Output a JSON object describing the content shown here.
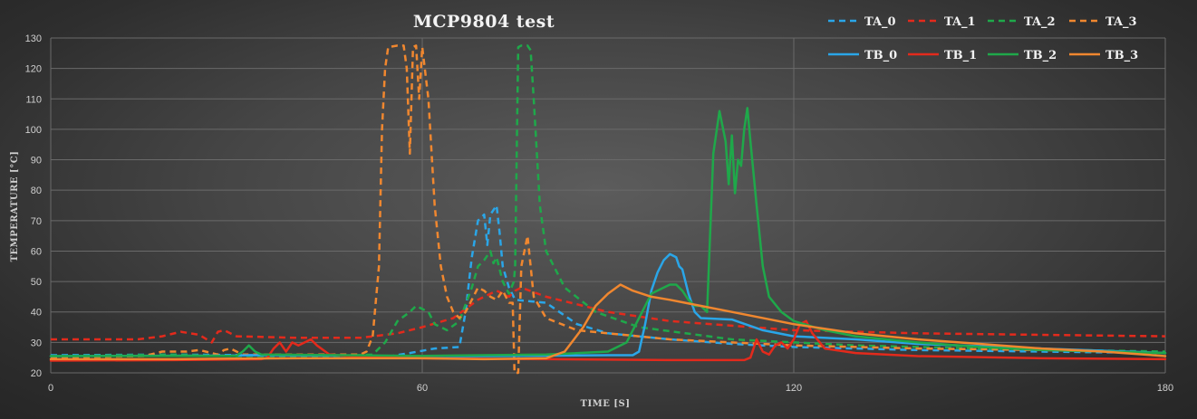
{
  "chart_data": {
    "type": "line",
    "title": "MCP9804  test",
    "xlabel": "TIME [S]",
    "ylabel": "TEMPERATURE [°C]",
    "xlim": [
      0,
      180
    ],
    "ylim": [
      20,
      130
    ],
    "x_ticks": [
      0,
      60,
      120,
      180
    ],
    "y_ticks": [
      20,
      30,
      40,
      50,
      60,
      70,
      80,
      90,
      100,
      110,
      120,
      130
    ],
    "grid": true,
    "legend_position": "top-right",
    "series": [
      {
        "name": "TA_0",
        "color": "#2aa6e8",
        "style": "dashed",
        "points": [
          [
            0,
            25.8
          ],
          [
            20,
            26
          ],
          [
            40,
            25.7
          ],
          [
            55,
            25.5
          ],
          [
            58,
            26.5
          ],
          [
            62,
            28
          ],
          [
            66,
            28.5
          ],
          [
            67,
            40
          ],
          [
            68,
            58
          ],
          [
            69,
            70
          ],
          [
            70,
            72
          ],
          [
            70.5,
            62
          ],
          [
            71,
            72
          ],
          [
            72,
            75
          ],
          [
            72.5,
            66
          ],
          [
            73,
            55
          ],
          [
            74,
            48
          ],
          [
            75,
            44
          ],
          [
            80,
            43
          ],
          [
            85,
            36
          ],
          [
            90,
            33
          ],
          [
            100,
            31
          ],
          [
            110,
            29.5
          ],
          [
            120,
            28.5
          ],
          [
            140,
            27.5
          ],
          [
            160,
            27
          ],
          [
            180,
            26.5
          ]
        ]
      },
      {
        "name": "TA_1",
        "color": "#e32a1c",
        "style": "dashed",
        "points": [
          [
            0,
            31
          ],
          [
            14,
            31
          ],
          [
            18,
            32
          ],
          [
            21,
            33.5
          ],
          [
            24,
            32.5
          ],
          [
            26,
            30
          ],
          [
            27,
            33.5
          ],
          [
            28,
            34
          ],
          [
            30,
            32
          ],
          [
            40,
            31.5
          ],
          [
            50,
            31.5
          ],
          [
            56,
            33
          ],
          [
            60,
            35
          ],
          [
            65,
            38
          ],
          [
            69,
            44
          ],
          [
            72,
            47
          ],
          [
            74,
            45
          ],
          [
            75,
            47
          ],
          [
            76,
            48
          ],
          [
            80,
            45
          ],
          [
            90,
            40
          ],
          [
            100,
            37
          ],
          [
            120,
            34
          ],
          [
            140,
            33
          ],
          [
            160,
            32.5
          ],
          [
            180,
            32
          ]
        ]
      },
      {
        "name": "TA_2",
        "color": "#1fa84a",
        "style": "dashed",
        "points": [
          [
            0,
            25.5
          ],
          [
            20,
            26
          ],
          [
            30,
            25.5
          ],
          [
            45,
            25.5
          ],
          [
            52,
            26
          ],
          [
            54,
            30
          ],
          [
            56,
            37
          ],
          [
            58,
            40
          ],
          [
            59,
            42
          ],
          [
            60,
            41
          ],
          [
            61,
            40
          ],
          [
            62,
            36
          ],
          [
            63,
            35
          ],
          [
            64,
            34
          ],
          [
            66,
            37
          ],
          [
            68,
            48
          ],
          [
            69,
            55
          ],
          [
            70,
            57
          ],
          [
            71,
            60
          ],
          [
            71.5,
            56
          ],
          [
            72,
            58
          ],
          [
            73,
            50
          ],
          [
            74,
            46
          ],
          [
            74.8,
            50
          ],
          [
            75,
            55
          ],
          [
            75.5,
            127
          ],
          [
            76,
            127.5
          ],
          [
            77,
            127.5
          ],
          [
            77.5,
            126
          ],
          [
            78,
            110
          ],
          [
            79,
            75
          ],
          [
            80,
            60
          ],
          [
            83,
            48
          ],
          [
            88,
            40
          ],
          [
            95,
            35
          ],
          [
            110,
            31
          ],
          [
            130,
            29
          ],
          [
            150,
            28
          ],
          [
            180,
            27
          ]
        ]
      },
      {
        "name": "TA_3",
        "color": "#f0872f",
        "style": "dashed",
        "points": [
          [
            0,
            25
          ],
          [
            15,
            25.5
          ],
          [
            18,
            27
          ],
          [
            22,
            27
          ],
          [
            24,
            27.5
          ],
          [
            27,
            26
          ],
          [
            28,
            27.5
          ],
          [
            29,
            28
          ],
          [
            31,
            26
          ],
          [
            40,
            26
          ],
          [
            50,
            26
          ],
          [
            51,
            27
          ],
          [
            52,
            32
          ],
          [
            53,
            55
          ],
          [
            53.5,
            100
          ],
          [
            54,
            120
          ],
          [
            54.5,
            127
          ],
          [
            56,
            127.5
          ],
          [
            57,
            127.5
          ],
          [
            57.5,
            120
          ],
          [
            58,
            92
          ],
          [
            58.5,
            127
          ],
          [
            59,
            127.5
          ],
          [
            59.5,
            110
          ],
          [
            60,
            127
          ],
          [
            61,
            110
          ],
          [
            62,
            75
          ],
          [
            63,
            55
          ],
          [
            64,
            45
          ],
          [
            65,
            40
          ],
          [
            66,
            38
          ],
          [
            67,
            40
          ],
          [
            68,
            44
          ],
          [
            69,
            48
          ],
          [
            70,
            47
          ],
          [
            71,
            45
          ],
          [
            72,
            44
          ],
          [
            73,
            47
          ],
          [
            74,
            43
          ],
          [
            74.6,
            43
          ],
          [
            74.9,
            20
          ],
          [
            75.5,
            20
          ],
          [
            76,
            55
          ],
          [
            77,
            65
          ],
          [
            78,
            45
          ],
          [
            80,
            38
          ],
          [
            85,
            34
          ],
          [
            90,
            33
          ],
          [
            100,
            31
          ],
          [
            110,
            30
          ],
          [
            120,
            29
          ],
          [
            140,
            28
          ],
          [
            160,
            27.5
          ],
          [
            180,
            26.5
          ]
        ]
      },
      {
        "name": "TB_0",
        "color": "#2aa6e8",
        "style": "solid",
        "points": [
          [
            0,
            25.5
          ],
          [
            30,
            25.7
          ],
          [
            35,
            25.8
          ],
          [
            60,
            25.5
          ],
          [
            70,
            25.5
          ],
          [
            90,
            25.8
          ],
          [
            94,
            25.8
          ],
          [
            95,
            27
          ],
          [
            96,
            36
          ],
          [
            97,
            47
          ],
          [
            98,
            53
          ],
          [
            99,
            57
          ],
          [
            100,
            59
          ],
          [
            101,
            58
          ],
          [
            101.5,
            55
          ],
          [
            102,
            54
          ],
          [
            103,
            46
          ],
          [
            104,
            40
          ],
          [
            105,
            38
          ],
          [
            110,
            37.5
          ],
          [
            115,
            34
          ],
          [
            120,
            32
          ],
          [
            130,
            31
          ],
          [
            140,
            29.5
          ],
          [
            160,
            28
          ],
          [
            180,
            26.5
          ]
        ]
      },
      {
        "name": "TB_1",
        "color": "#e32a1c",
        "style": "solid",
        "points": [
          [
            0,
            24
          ],
          [
            20,
            24.2
          ],
          [
            34,
            24.5
          ],
          [
            35,
            25
          ],
          [
            36,
            28
          ],
          [
            37,
            30
          ],
          [
            38,
            27
          ],
          [
            39,
            30
          ],
          [
            40,
            29
          ],
          [
            41,
            30
          ],
          [
            42,
            31
          ],
          [
            43,
            29
          ],
          [
            45,
            26
          ],
          [
            50,
            25.2
          ],
          [
            60,
            24.8
          ],
          [
            80,
            24.5
          ],
          [
            100,
            24.2
          ],
          [
            112,
            24.2
          ],
          [
            113,
            25
          ],
          [
            114,
            31
          ],
          [
            115,
            27
          ],
          [
            116,
            26
          ],
          [
            117,
            29
          ],
          [
            118,
            30
          ],
          [
            119,
            28
          ],
          [
            120,
            31
          ],
          [
            121,
            36
          ],
          [
            122,
            37
          ],
          [
            123,
            33
          ],
          [
            125,
            28
          ],
          [
            130,
            26.5
          ],
          [
            140,
            25.5
          ],
          [
            160,
            24.8
          ],
          [
            180,
            24.5
          ]
        ]
      },
      {
        "name": "TB_2",
        "color": "#1fa84a",
        "style": "solid",
        "points": [
          [
            0,
            25.5
          ],
          [
            30,
            25.6
          ],
          [
            31,
            27
          ],
          [
            32,
            29
          ],
          [
            33,
            27
          ],
          [
            34,
            26
          ],
          [
            60,
            25.6
          ],
          [
            80,
            26
          ],
          [
            90,
            27
          ],
          [
            93,
            30
          ],
          [
            95,
            38
          ],
          [
            97,
            46
          ],
          [
            99,
            48
          ],
          [
            100,
            49
          ],
          [
            101,
            49
          ],
          [
            102,
            47
          ],
          [
            103,
            44
          ],
          [
            104,
            42
          ],
          [
            105,
            42
          ],
          [
            106,
            40
          ],
          [
            107,
            92
          ],
          [
            108,
            106
          ],
          [
            109,
            96
          ],
          [
            109.5,
            82
          ],
          [
            110,
            98
          ],
          [
            110.5,
            79
          ],
          [
            111,
            90
          ],
          [
            111.5,
            88
          ],
          [
            112,
            100
          ],
          [
            112.5,
            107
          ],
          [
            113,
            96
          ],
          [
            114,
            75
          ],
          [
            115,
            55
          ],
          [
            116,
            45
          ],
          [
            118,
            40
          ],
          [
            120,
            37
          ],
          [
            125,
            34
          ],
          [
            130,
            32
          ],
          [
            140,
            30
          ],
          [
            150,
            28.5
          ],
          [
            160,
            27.5
          ],
          [
            180,
            26.5
          ]
        ]
      },
      {
        "name": "TB_3",
        "color": "#f0872f",
        "style": "solid",
        "points": [
          [
            0,
            24.5
          ],
          [
            20,
            24.5
          ],
          [
            30,
            24.7
          ],
          [
            40,
            24.8
          ],
          [
            60,
            24.8
          ],
          [
            70,
            24.5
          ],
          [
            80,
            24.8
          ],
          [
            83,
            27
          ],
          [
            86,
            35
          ],
          [
            88,
            42
          ],
          [
            90,
            46
          ],
          [
            92,
            49
          ],
          [
            94,
            47
          ],
          [
            97,
            45
          ],
          [
            100,
            44
          ],
          [
            105,
            42
          ],
          [
            110,
            40
          ],
          [
            120,
            36
          ],
          [
            130,
            33
          ],
          [
            140,
            31
          ],
          [
            150,
            29.5
          ],
          [
            160,
            28
          ],
          [
            170,
            27
          ],
          [
            180,
            25.5
          ]
        ]
      }
    ]
  }
}
